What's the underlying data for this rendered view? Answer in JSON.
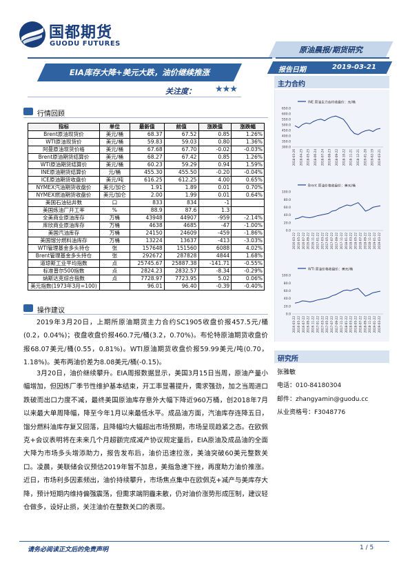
{
  "header": {
    "logo_cn": "国都期货",
    "logo_en": "GUODU FUTURES",
    "report_type": "原油晨报/期货研究",
    "title": "EIA库存大降+美元大跌，油价继续推涨",
    "date_label": "报告日期",
    "date_value": "2019-03-21",
    "attention_label": "关注度：",
    "attention_stars": "★★★"
  },
  "colors": {
    "brand": "#1a3d7c",
    "accent": "#2f62a1",
    "panel": "#f0f4fa",
    "line": "#1f3f8f"
  },
  "sidebar": {
    "main_contract_heading": "主力合约",
    "charts": [
      {
        "legend": "INE 原油主力合约收盘价：元/桶",
        "y_ticks": [
          "650.0",
          "600.0",
          "550.0",
          "500.0",
          "450.0",
          "400.0",
          "350.0",
          "300.0"
        ],
        "x_ticks": [
          "2018-03-26",
          "2018-04-25",
          "2018-05-25",
          "2018-06-24",
          "2018-07-24",
          "2018-08-23",
          "2018-09-22",
          "2018-10-22",
          "2018-11-21",
          "2018-12-21",
          "2019-01-20",
          "2019-02-19",
          "2019-03-21"
        ]
      },
      {
        "legend": "Brent 原油价格收盘价：美元/桶",
        "y_ticks": [
          "100.0",
          "80.0",
          "60.0",
          "40.0",
          "20.0",
          "0.0"
        ],
        "x_ticks": [
          "2016-03-22",
          "2016-05-22",
          "2016-07-22",
          "2016-09-22",
          "2016-11-22",
          "2017-01-22",
          "2017-03-22",
          "2017-05-22",
          "2017-07-22",
          "2017-09-22",
          "2017-11-22",
          "2018-01-22",
          "2018-03-22",
          "2018-05-22",
          "2018-07-22",
          "2018-09-22",
          "2018-11-22",
          "2019-01-22",
          "2019-03-22"
        ]
      },
      {
        "legend": "WTI 原油价格收盘价：美元/桶",
        "y_ticks": [
          "100.0",
          "80.0",
          "60.0",
          "40.0",
          "20.0",
          "0.0"
        ],
        "x_ticks": [
          "2016-03-22",
          "2016-05-22",
          "2016-07-22",
          "2016-09-22",
          "2016-11-22",
          "2017-01-22",
          "2017-03-22",
          "2017-05-22",
          "2017-07-22",
          "2017-09-22",
          "2017-11-22",
          "2018-01-22",
          "2018-03-22",
          "2018-05-22",
          "2018-07-22",
          "2018-09-22",
          "2018-11-22",
          "2019-01-22",
          "2019-03-22"
        ]
      }
    ],
    "research_heading": "研究所",
    "analyst": "张雅敏",
    "phone": "电话：010-84180304",
    "email": "邮件：zhangyamin@guodu.cc",
    "license": "从业资格号：F3048776"
  },
  "market_review": {
    "heading": "行情回顾",
    "columns": [
      "指标",
      "单位",
      "最新值",
      "前值",
      "涨跌值",
      "涨跌幅"
    ],
    "rows": [
      [
        "Brent原油现货价",
        "美元/桶",
        "68.37",
        "67.52",
        "0.85",
        "1.26%"
      ],
      [
        "WTI原油现货价",
        "美元/桶",
        "59.83",
        "59.03",
        "0.80",
        "1.36%"
      ],
      [
        "阿曼原油现货价格",
        "美元/桶",
        "67.68",
        "67.70",
        "-0.02",
        "-0.03%"
      ],
      [
        "Brent原油期货结算价",
        "美元/桶",
        "68.27",
        "67.42",
        "0.85",
        "1.26%"
      ],
      [
        "WTI原油期货结算价",
        "美元/桶",
        "60.23",
        "59.29",
        "0.94",
        "1.59%"
      ],
      [
        "INE原油期货结算价",
        "元/桶",
        "455.30",
        "455.50",
        "-0.20",
        "-0.04%"
      ],
      [
        "ICE原油期货收盘价",
        "美元/吨",
        "616.25",
        "612.25",
        "4.00",
        "0.65%"
      ],
      [
        "NYMEX汽油期货收盘价",
        "美元/加仑",
        "1.91",
        "1.89",
        "0.01",
        "0.70%"
      ],
      [
        "NYMEX燃油期货收盘价",
        "美元/加仑",
        "2.00",
        "1.99",
        "0.01",
        "0.64%"
      ],
      [
        "美国石油钻井数",
        "口",
        "833",
        "834",
        "-1",
        ""
      ],
      [
        "美国炼油厂开工率",
        "%",
        "88.9",
        "87.6",
        "1.3",
        ""
      ],
      [
        "全美商业原油库存",
        "万桶",
        "43948",
        "44907",
        "-959",
        "-2.14%"
      ],
      [
        "库欣商业原油库存",
        "万桶",
        "4638",
        "4685",
        "-47",
        "-1.00%"
      ],
      [
        "美国汽油库存",
        "万桶",
        "24150",
        "24609",
        "-459",
        "-1.86%"
      ],
      [
        "美国馏分燃料油库存",
        "万桶",
        "13224",
        "13637",
        "-413",
        "-3.03%"
      ],
      [
        "WTI管理基金多头持仓",
        "张",
        "157648",
        "151560",
        "6088",
        "4.02%"
      ],
      [
        "Brent管理基金多头持仓",
        "张",
        "292672",
        "287828",
        "4844",
        "1.68%"
      ],
      [
        "道琼斯工业平均指数",
        "点",
        "25745.67",
        "25887.38",
        "-141.71",
        "-0.55%"
      ],
      [
        "标准普尔500指数",
        "点",
        "2824.23",
        "2832.57",
        "-8.34",
        "-0.29%"
      ],
      [
        "纳斯达克综合指数",
        "点",
        "7728.97",
        "7723.95",
        "5.02",
        "0.06%"
      ],
      [
        "美元指数(1973年3月=100)",
        "",
        "96.01",
        "96.40",
        "-0.39",
        "-0.40%"
      ]
    ]
  },
  "advice": {
    "heading": "操作建议",
    "paragraphs": [
      "2019年3月20日，上期所原油期货主力合约SC1905收盘价报457.5元/桶(0.2，0.04%)；夜盘收盘价报460.7元/桶(3.2，0.70%)。布伦特原油期货收盘价报68.07美元/桶(0.55，0.81%)。WTI原油期货收盘价报59.99美元/吨(0.70，1.18%)。美布两油价差为8.08美元/桶(-0.15)。",
      "3月20日，油价继续攀升。EIA周报数据显示，美国3月15日当周，原油产量小幅增加，但因炼厂季节性维护基本结束，开工率显著提升，需求强劲，加之当周进口跌破而出口力度不减，最终美国原油库存意外大幅下降近960万桶，创2018年7月以来最大单周降幅，降至今年1月以来最低水平。成品油方面，汽油库存连降五日，馏分燃料油库存复又回落，且降幅均大幅超出市场预期，市场呈现趋紧之态。在欧佩克+会议表明将在未来几个月超额完成减产协议规定量后，EIA原油及成品油的全面大降为市场多头增添助力，报告发布后，油价迅速拉涨，美油突破60美元整数关口。凌晨，美联储会议预估2019年暂不加息，美指急速下挫，再度助力油价推涨。近日，市场利多因素频出，油价持续攀升，市场焦点集中在欧佩克+减产与美库存大降，预计短期内维持偏强震荡，但需求端阴霾未散，仍对油价涨势形成压制，建议轻仓做多，设好止损，关注油价在整数关口的表现。"
    ]
  },
  "footer": {
    "disclaimer": "请务必阅读正文后的免责声明",
    "page": "1 / 5"
  }
}
